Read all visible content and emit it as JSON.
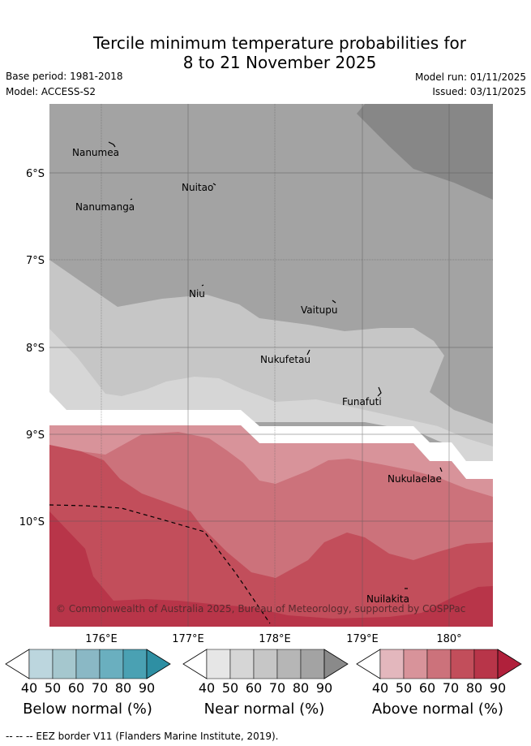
{
  "header": {
    "title_line1": "Tercile minimum temperature probabilities for",
    "title_line2": "8 to 21 November 2025",
    "base_period": "Base period: 1981-2018",
    "model": "Model: ACCESS-S2",
    "model_run": "Model run: 01/11/2025",
    "issued": "Issued: 03/11/2025"
  },
  "map": {
    "lat_labels": [
      "6°S",
      "7°S",
      "8°S",
      "9°S",
      "10°S"
    ],
    "lon_labels": [
      "176°E",
      "177°E",
      "178°E",
      "179°E",
      "180°"
    ],
    "places": [
      {
        "name": "Nanumea"
      },
      {
        "name": "Nuitao"
      },
      {
        "name": "Nanumanga"
      },
      {
        "name": "Niu"
      },
      {
        "name": "Vaitupu"
      },
      {
        "name": "Nukufetau"
      },
      {
        "name": "Funafuti"
      },
      {
        "name": "Nukulaelae"
      },
      {
        "name": "Nuilakita"
      }
    ],
    "copyright": "© Commonwealth of Australia 2025, Bureau of Meteorology, supported by COSPPac"
  },
  "colorbars": [
    {
      "title": "Below normal (%)",
      "ticks": [
        "40",
        "50",
        "60",
        "70",
        "80",
        "90"
      ],
      "colors": [
        "#bcd6de",
        "#a5c7ce",
        "#8ab8c5",
        "#6aafbf",
        "#4aa1b3",
        "#2e8fa3"
      ]
    },
    {
      "title": "Near normal (%)",
      "ticks": [
        "40",
        "50",
        "60",
        "70",
        "80",
        "90"
      ],
      "colors": [
        "#e6e6e6",
        "#d6d6d6",
        "#c6c6c6",
        "#b6b6b6",
        "#a3a3a3",
        "#8a8a8a"
      ]
    },
    {
      "title": "Above normal (%)",
      "ticks": [
        "40",
        "50",
        "60",
        "70",
        "80",
        "90"
      ],
      "colors": [
        "#e3b7bd",
        "#d8939a",
        "#cc727b",
        "#c24e5b",
        "#b83549",
        "#b0203b"
      ]
    }
  ],
  "footnote": "--  --  -- EEZ border V11 (Flanders Marine Institute, 2019)."
}
